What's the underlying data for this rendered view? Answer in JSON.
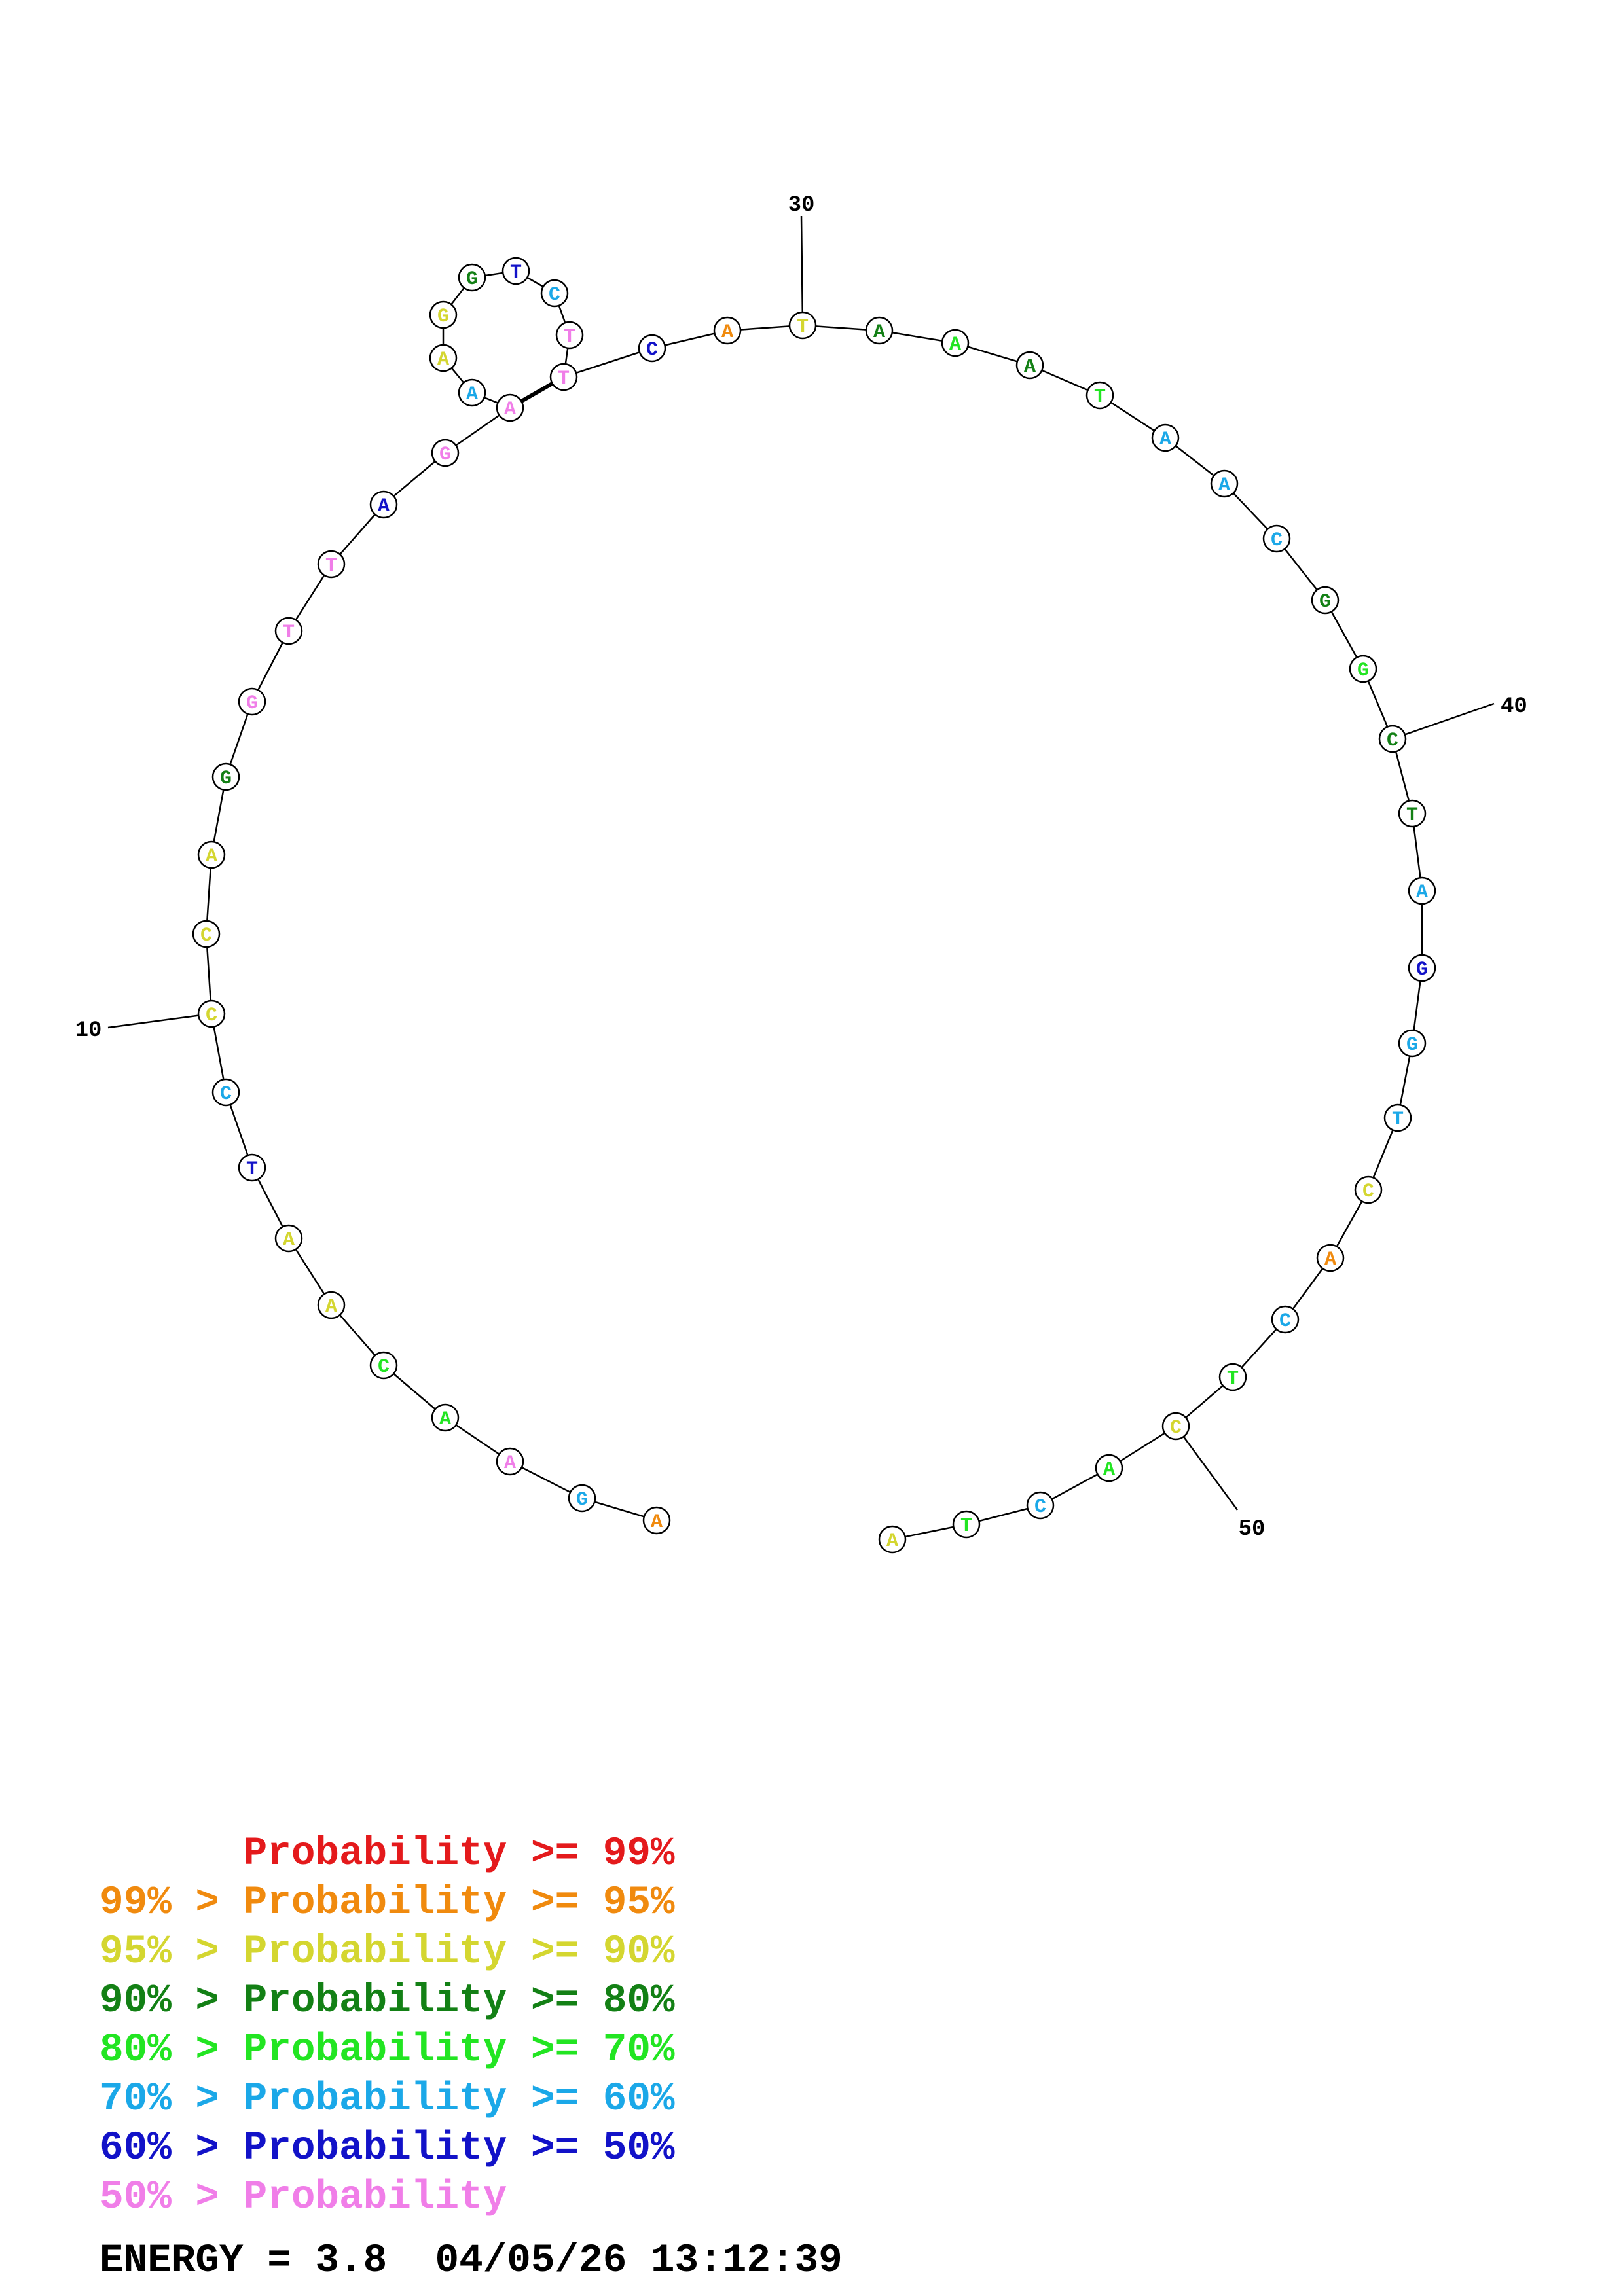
{
  "colors": {
    "red": "#e41a1c",
    "orange": "#f08a0e",
    "olive": "#d4d630",
    "darkgreen": "#138015",
    "green": "#22e522",
    "skyblue": "#1ba8e8",
    "blue": "#1212c8",
    "pink": "#f07ee8",
    "line": "#000000"
  },
  "sequence": [
    {
      "n": 1,
      "base": "A",
      "color": "orange"
    },
    {
      "n": 2,
      "base": "G",
      "color": "skyblue"
    },
    {
      "n": 3,
      "base": "A",
      "color": "pink"
    },
    {
      "n": 4,
      "base": "A",
      "color": "green"
    },
    {
      "n": 5,
      "base": "C",
      "color": "green"
    },
    {
      "n": 6,
      "base": "A",
      "color": "olive"
    },
    {
      "n": 7,
      "base": "A",
      "color": "olive"
    },
    {
      "n": 8,
      "base": "T",
      "color": "blue"
    },
    {
      "n": 9,
      "base": "C",
      "color": "skyblue"
    },
    {
      "n": 10,
      "base": "C",
      "color": "olive"
    },
    {
      "n": 11,
      "base": "C",
      "color": "olive"
    },
    {
      "n": 12,
      "base": "A",
      "color": "olive"
    },
    {
      "n": 13,
      "base": "G",
      "color": "darkgreen"
    },
    {
      "n": 14,
      "base": "G",
      "color": "pink"
    },
    {
      "n": 15,
      "base": "T",
      "color": "pink"
    },
    {
      "n": 16,
      "base": "T",
      "color": "pink"
    },
    {
      "n": 17,
      "base": "A",
      "color": "blue"
    },
    {
      "n": 18,
      "base": "G",
      "color": "pink"
    },
    {
      "n": 19,
      "base": "A",
      "color": "pink"
    },
    {
      "n": 20,
      "base": "A",
      "color": "skyblue"
    },
    {
      "n": 21,
      "base": "A",
      "color": "olive"
    },
    {
      "n": 22,
      "base": "G",
      "color": "olive"
    },
    {
      "n": 23,
      "base": "G",
      "color": "darkgreen"
    },
    {
      "n": 24,
      "base": "T",
      "color": "blue"
    },
    {
      "n": 25,
      "base": "C",
      "color": "skyblue"
    },
    {
      "n": 26,
      "base": "T",
      "color": "pink"
    },
    {
      "n": 27,
      "base": "T",
      "color": "pink"
    },
    {
      "n": 28,
      "base": "C",
      "color": "blue"
    },
    {
      "n": 29,
      "base": "A",
      "color": "orange"
    },
    {
      "n": 30,
      "base": "T",
      "color": "olive"
    },
    {
      "n": 31,
      "base": "A",
      "color": "darkgreen"
    },
    {
      "n": 32,
      "base": "A",
      "color": "green"
    },
    {
      "n": 33,
      "base": "A",
      "color": "darkgreen"
    },
    {
      "n": 34,
      "base": "T",
      "color": "green"
    },
    {
      "n": 35,
      "base": "A",
      "color": "skyblue"
    },
    {
      "n": 36,
      "base": "A",
      "color": "skyblue"
    },
    {
      "n": 37,
      "base": "C",
      "color": "skyblue"
    },
    {
      "n": 38,
      "base": "G",
      "color": "darkgreen"
    },
    {
      "n": 39,
      "base": "G",
      "color": "green"
    },
    {
      "n": 40,
      "base": "C",
      "color": "darkgreen"
    },
    {
      "n": 41,
      "base": "T",
      "color": "darkgreen"
    },
    {
      "n": 42,
      "base": "A",
      "color": "skyblue"
    },
    {
      "n": 43,
      "base": "G",
      "color": "blue"
    },
    {
      "n": 44,
      "base": "G",
      "color": "skyblue"
    },
    {
      "n": 45,
      "base": "T",
      "color": "skyblue"
    },
    {
      "n": 46,
      "base": "C",
      "color": "olive"
    },
    {
      "n": 47,
      "base": "A",
      "color": "orange"
    },
    {
      "n": 48,
      "base": "C",
      "color": "skyblue"
    },
    {
      "n": 49,
      "base": "T",
      "color": "green"
    },
    {
      "n": 50,
      "base": "C",
      "color": "olive"
    },
    {
      "n": 51,
      "base": "A",
      "color": "green"
    },
    {
      "n": 52,
      "base": "C",
      "color": "skyblue"
    },
    {
      "n": 53,
      "base": "T",
      "color": "green"
    },
    {
      "n": 54,
      "base": "A",
      "color": "olive"
    }
  ],
  "pairs": [
    [
      19,
      27
    ]
  ],
  "tick_labels": [
    {
      "n": 10,
      "text": "10"
    },
    {
      "n": 30,
      "text": "30"
    },
    {
      "n": 40,
      "text": "40"
    },
    {
      "n": 50,
      "text": "50"
    }
  ],
  "legend": [
    {
      "text": "      Probability >= 99%",
      "color": "red"
    },
    {
      "text": "99% > Probability >= 95%",
      "color": "orange"
    },
    {
      "text": "95% > Probability >= 90%",
      "color": "olive"
    },
    {
      "text": "90% > Probability >= 80%",
      "color": "darkgreen"
    },
    {
      "text": "80% > Probability >= 70%",
      "color": "green"
    },
    {
      "text": "70% > Probability >= 60%",
      "color": "skyblue"
    },
    {
      "text": "60% > Probability >= 50%",
      "color": "blue"
    },
    {
      "text": "50% > Probability",
      "color": "pink"
    }
  ],
  "energy_text": "ENERGY = 3.8  04/05/26 13:12:39"
}
